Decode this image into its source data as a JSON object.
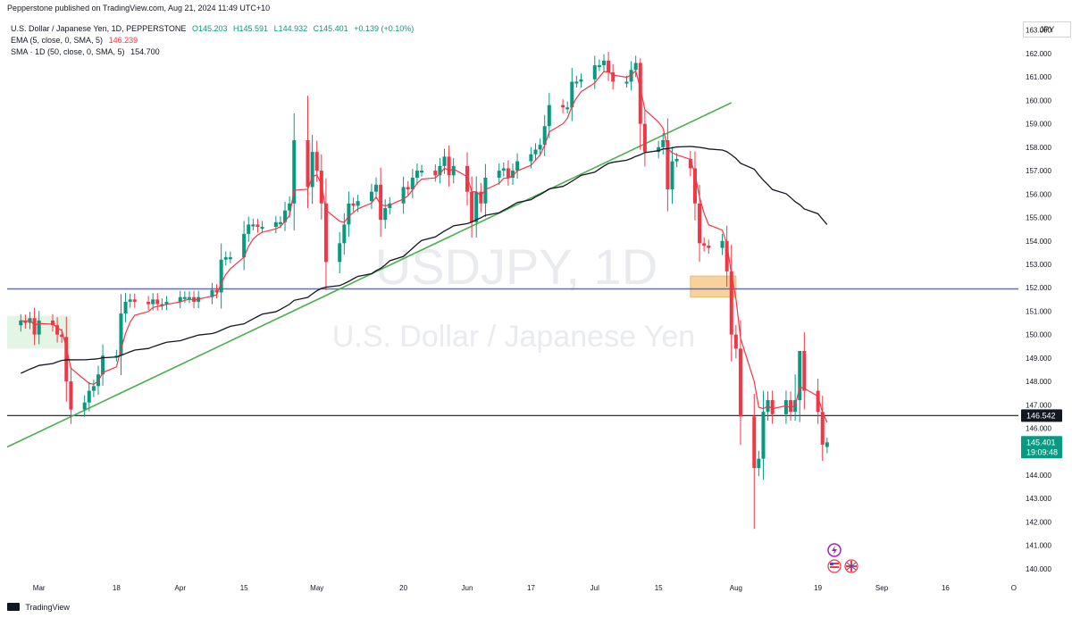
{
  "header": {
    "publisher": "Pepperstone published on TradingView.com, Aug 21, 2024 11:49 UTC+10"
  },
  "legend": {
    "instrument": "U.S. Dollar / Japanese Yen, 1D, PEPPERSTONE",
    "ohlc": {
      "open": "O145.203",
      "high": "H145.591",
      "low": "L144.932",
      "close": "C145.401",
      "change": "+0.139 (+0.10%)"
    },
    "ema_label": "EMA (5, close, 0, SMA, 5)",
    "ema_value": "146.239",
    "sma_label": "SMA · 1D (50, close, 0, SMA, 5)",
    "sma_value": "154.700"
  },
  "axis_unit": "JPY",
  "footer": {
    "brand": "TradingView"
  },
  "watermark": {
    "symbol": "USDJPY, 1D",
    "name": "U.S. Dollar / Japanese Yen"
  },
  "colors": {
    "up": "#089981",
    "down": "#f23645",
    "ema": "#f23645",
    "sma": "#131722",
    "trendline": "#4caf50",
    "support": "#5b6bd6",
    "current_level": "#131722",
    "zone": "#f5c57a",
    "box": "#d1f0d6"
  },
  "chart_data": {
    "type": "candlestick",
    "symbol": "USDJPY",
    "timeframe": "1D",
    "y_axis": {
      "ticks": [
        "163.000",
        "162.000",
        "161.000",
        "160.000",
        "159.000",
        "158.000",
        "157.000",
        "156.000",
        "155.000",
        "154.000",
        "153.000",
        "152.000",
        "151.000",
        "150.000",
        "149.000",
        "148.000",
        "147.000",
        "146.000",
        "145.000",
        "144.000",
        "143.000",
        "142.000",
        "141.000",
        "140.000"
      ],
      "range": [
        139.5,
        163.6
      ]
    },
    "x_axis": {
      "ticks": [
        {
          "date": "2024-03-01",
          "label": "Mar"
        },
        {
          "date": "2024-03-18",
          "label": "18"
        },
        {
          "date": "2024-04-01",
          "label": "Apr"
        },
        {
          "date": "2024-04-15",
          "label": "15"
        },
        {
          "date": "2024-05-01",
          "label": "May"
        },
        {
          "date": "2024-05-20",
          "label": "20"
        },
        {
          "date": "2024-06-03",
          "label": "Jun"
        },
        {
          "date": "2024-06-17",
          "label": "17"
        },
        {
          "date": "2024-07-01",
          "label": "Jul"
        },
        {
          "date": "2024-07-15",
          "label": "15"
        },
        {
          "date": "2024-08-01",
          "label": "Aug"
        },
        {
          "date": "2024-08-19",
          "label": "19"
        },
        {
          "date": "2024-09-02",
          "label": "Sep"
        },
        {
          "date": "2024-09-16",
          "label": "16"
        },
        {
          "date": "2024-10-01",
          "label": "O"
        }
      ],
      "range": [
        "2024-02-23",
        "2024-10-02"
      ]
    },
    "closes": [
      [
        "2024-02-26",
        150.6
      ],
      [
        "2024-02-27",
        150.5
      ],
      [
        "2024-02-28",
        150.7
      ],
      [
        "2024-02-29",
        150.0
      ],
      [
        "2024-03-01",
        150.6
      ],
      [
        "2024-03-04",
        150.4
      ],
      [
        "2024-03-05",
        150.0
      ],
      [
        "2024-03-06",
        149.9
      ],
      [
        "2024-03-07",
        148.0
      ],
      [
        "2024-03-08",
        146.8
      ],
      [
        "2024-03-11",
        147.1
      ],
      [
        "2024-03-12",
        147.6
      ],
      [
        "2024-03-13",
        147.8
      ],
      [
        "2024-03-14",
        148.3
      ],
      [
        "2024-03-15",
        149.1
      ],
      [
        "2024-03-18",
        149.1
      ],
      [
        "2024-03-19",
        150.9
      ],
      [
        "2024-03-20",
        151.4
      ],
      [
        "2024-03-21",
        151.5
      ],
      [
        "2024-03-22",
        151.4
      ],
      [
        "2024-03-25",
        151.3
      ],
      [
        "2024-03-26",
        151.5
      ],
      [
        "2024-03-27",
        151.3
      ],
      [
        "2024-03-28",
        151.3
      ],
      [
        "2024-03-29",
        151.4
      ],
      [
        "2024-04-01",
        151.6
      ],
      [
        "2024-04-02",
        151.6
      ],
      [
        "2024-04-03",
        151.6
      ],
      [
        "2024-04-04",
        151.4
      ],
      [
        "2024-04-05",
        151.6
      ],
      [
        "2024-04-08",
        151.9
      ],
      [
        "2024-04-09",
        151.8
      ],
      [
        "2024-04-10",
        153.2
      ],
      [
        "2024-04-11",
        153.3
      ],
      [
        "2024-04-12",
        153.3
      ],
      [
        "2024-04-15",
        154.3
      ],
      [
        "2024-04-16",
        154.7
      ],
      [
        "2024-04-17",
        154.7
      ],
      [
        "2024-04-18",
        154.6
      ],
      [
        "2024-04-19",
        154.6
      ],
      [
        "2024-04-22",
        154.8
      ],
      [
        "2024-04-23",
        154.8
      ],
      [
        "2024-04-24",
        155.3
      ],
      [
        "2024-04-25",
        155.6
      ],
      [
        "2024-04-26",
        158.3
      ],
      [
        "2024-04-29",
        156.3
      ],
      [
        "2024-04-30",
        157.8
      ],
      [
        "2024-05-01",
        157.0
      ],
      [
        "2024-05-02",
        155.6
      ],
      [
        "2024-05-03",
        153.1
      ],
      [
        "2024-05-06",
        153.9
      ],
      [
        "2024-05-07",
        154.7
      ],
      [
        "2024-05-08",
        155.6
      ],
      [
        "2024-05-09",
        155.5
      ],
      [
        "2024-05-10",
        155.7
      ],
      [
        "2024-05-13",
        156.1
      ],
      [
        "2024-05-14",
        156.4
      ],
      [
        "2024-05-15",
        154.9
      ],
      [
        "2024-05-16",
        155.4
      ],
      [
        "2024-05-17",
        155.6
      ],
      [
        "2024-05-20",
        156.3
      ],
      [
        "2024-05-21",
        156.2
      ],
      [
        "2024-05-22",
        156.7
      ],
      [
        "2024-05-23",
        157.0
      ],
      [
        "2024-05-24",
        157.0
      ],
      [
        "2024-05-27",
        156.8
      ],
      [
        "2024-05-28",
        157.2
      ],
      [
        "2024-05-29",
        157.6
      ],
      [
        "2024-05-30",
        156.8
      ],
      [
        "2024-05-31",
        157.2
      ],
      [
        "2024-06-03",
        156.1
      ],
      [
        "2024-06-04",
        154.8
      ],
      [
        "2024-06-05",
        156.1
      ],
      [
        "2024-06-06",
        155.6
      ],
      [
        "2024-06-07",
        156.7
      ],
      [
        "2024-06-10",
        157.0
      ],
      [
        "2024-06-11",
        157.1
      ],
      [
        "2024-06-12",
        156.7
      ],
      [
        "2024-06-13",
        157.0
      ],
      [
        "2024-06-14",
        157.4
      ],
      [
        "2024-06-17",
        157.7
      ],
      [
        "2024-06-18",
        157.9
      ],
      [
        "2024-06-19",
        158.1
      ],
      [
        "2024-06-20",
        158.9
      ],
      [
        "2024-06-21",
        159.8
      ],
      [
        "2024-06-24",
        159.7
      ],
      [
        "2024-06-25",
        159.7
      ],
      [
        "2024-06-26",
        160.8
      ],
      [
        "2024-06-27",
        160.8
      ],
      [
        "2024-06-28",
        160.9
      ],
      [
        "2024-07-01",
        161.5
      ],
      [
        "2024-07-02",
        161.5
      ],
      [
        "2024-07-03",
        161.7
      ],
      [
        "2024-07-04",
        161.2
      ],
      [
        "2024-07-05",
        160.8
      ],
      [
        "2024-07-08",
        160.8
      ],
      [
        "2024-07-09",
        161.3
      ],
      [
        "2024-07-10",
        161.6
      ],
      [
        "2024-07-11",
        159.0
      ],
      [
        "2024-07-12",
        157.8
      ],
      [
        "2024-07-15",
        158.0
      ],
      [
        "2024-07-16",
        158.3
      ],
      [
        "2024-07-17",
        156.2
      ],
      [
        "2024-07-18",
        157.4
      ],
      [
        "2024-07-19",
        157.5
      ],
      [
        "2024-07-22",
        157.1
      ],
      [
        "2024-07-23",
        155.6
      ],
      [
        "2024-07-24",
        153.9
      ],
      [
        "2024-07-25",
        153.8
      ],
      [
        "2024-07-26",
        153.7
      ],
      [
        "2024-07-29",
        154.0
      ],
      [
        "2024-07-30",
        152.7
      ],
      [
        "2024-07-31",
        150.0
      ],
      [
        "2024-08-01",
        149.4
      ],
      [
        "2024-08-02",
        146.5
      ],
      [
        "2024-08-05",
        144.3
      ],
      [
        "2024-08-06",
        144.7
      ],
      [
        "2024-08-07",
        146.7
      ],
      [
        "2024-08-08",
        147.2
      ],
      [
        "2024-08-09",
        146.6
      ],
      [
        "2024-08-12",
        147.2
      ],
      [
        "2024-08-13",
        146.7
      ],
      [
        "2024-08-14",
        147.2
      ],
      [
        "2024-08-15",
        149.3
      ],
      [
        "2024-08-16",
        147.6
      ],
      [
        "2024-08-19",
        146.7
      ],
      [
        "2024-08-20",
        145.3
      ],
      [
        "2024-08-21",
        145.4
      ]
    ],
    "last_candle": {
      "date": "2024-08-21",
      "open": 145.203,
      "high": 145.591,
      "low": 144.932,
      "close": 145.401
    },
    "series": [
      {
        "name": "EMA (5, close, 0, SMA, 5)",
        "indicator": "ema",
        "period": 5,
        "last_value": 146.239
      },
      {
        "name": "SMA · 1D (50, close, 0, SMA, 5)",
        "indicator": "sma",
        "period": 50,
        "last_value": 154.7
      }
    ],
    "annotations": {
      "trendline": {
        "from": [
          "2024-02-23",
          145.2
        ],
        "to": [
          "2024-07-31",
          159.9
        ]
      },
      "support_level": 151.95,
      "current_level": {
        "value": 146.542,
        "label": "146.542"
      },
      "price_badge": {
        "value": 145.401,
        "label": "145.401",
        "countdown": "19:09:48"
      },
      "highlight_box": {
        "from": [
          "2024-02-23",
          149.4
        ],
        "to": [
          "2024-03-08",
          150.8
        ]
      },
      "zone": {
        "from": [
          "2024-07-22",
          151.6
        ],
        "to": [
          "2024-08-01",
          152.5
        ]
      }
    },
    "grid": false,
    "log_scale": false
  }
}
